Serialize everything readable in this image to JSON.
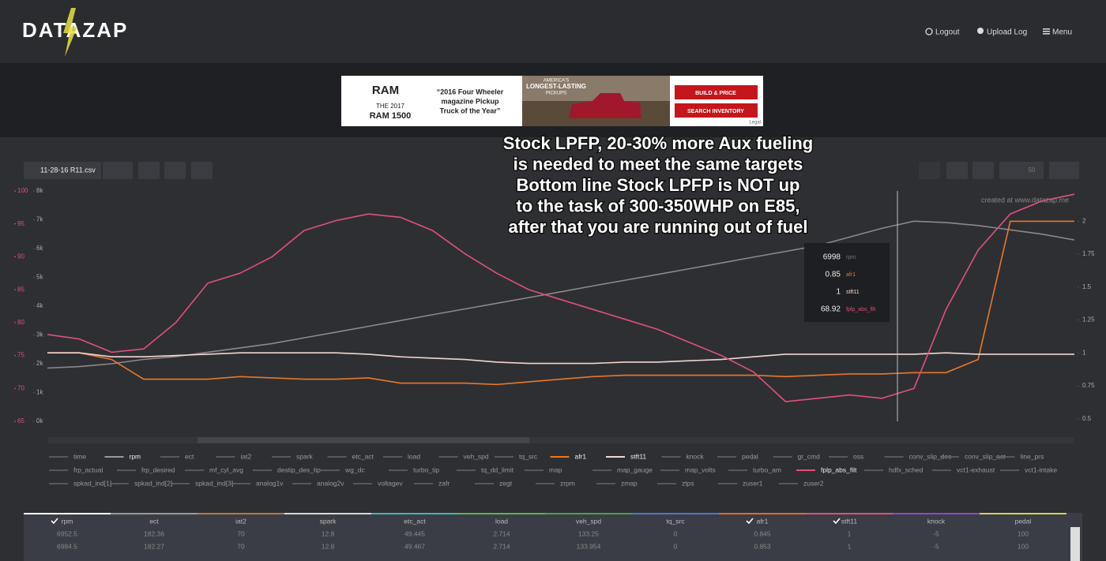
{
  "header": {
    "logo": "DATAZAP",
    "nav": [
      "Logout",
      "Upload Log",
      "Menu"
    ]
  },
  "ad": {
    "brand": "RAM",
    "model_year": "THE 2017",
    "model": "RAM 1500",
    "quote": [
      "“2016 Four Wheeler",
      "magazine Pickup",
      "Truck of the Year”"
    ],
    "tagline": [
      "AMERICA'S",
      "LONGEST-LASTING",
      "PICKUPS"
    ],
    "buttons": [
      "BUILD & PRICE",
      "SEARCH INVENTORY"
    ],
    "legal": "Legal"
  },
  "toolbar": {
    "file": "11-28-16 R11.csv",
    "speed": "50"
  },
  "annotation": [
    "Stock LPFP, 20-30% more Aux fueling",
    "is needed to meet the same targets",
    "Bottom line Stock LPFP is NOT up",
    "to the task of 300-350WHP on E85,",
    "after that you are running out of fuel"
  ],
  "chart_data": {
    "type": "line",
    "watermark": "created at www.datazap.me",
    "ylim": [
      0,
      8000
    ],
    "yticks": [
      {
        "value": 0,
        "label": "0k"
      },
      {
        "value": 1000,
        "label": "1k"
      },
      {
        "value": 2000,
        "label": "2k"
      },
      {
        "value": 3000,
        "label": "3k"
      },
      {
        "value": 4000,
        "label": "4k"
      },
      {
        "value": 5000,
        "label": "5k"
      },
      {
        "value": 6000,
        "label": "6k"
      },
      {
        "value": 7000,
        "label": "7k"
      },
      {
        "value": 8000,
        "label": "8k"
      }
    ],
    "y2lim": [
      0.48,
      2.23
    ],
    "y2ticks": [
      0.5,
      0.75,
      1,
      1.25,
      1.5,
      1.75,
      2
    ],
    "y3lim": [
      65,
      100
    ],
    "y3ticks": [
      65,
      70,
      75,
      80,
      85,
      90,
      95,
      100
    ],
    "y3color": "#e0507a",
    "grid": false,
    "series": [
      {
        "name": "rpm",
        "color": "#8a8a8a",
        "axis": "y",
        "values": [
          1850,
          1900,
          2000,
          2150,
          2250,
          2400,
          2550,
          2700,
          2900,
          3100,
          3300,
          3500,
          3700,
          3900,
          4100,
          4300,
          4500,
          4700,
          4900,
          5100,
          5300,
          5500,
          5700,
          5900,
          6100,
          6400,
          6700,
          6950,
          6900,
          6800,
          6650,
          6500,
          6300
        ]
      },
      {
        "name": "afr1",
        "color": "#e8782a",
        "axis": "y2",
        "values": [
          1.0,
          1.0,
          0.95,
          0.8,
          0.8,
          0.8,
          0.82,
          0.81,
          0.8,
          0.8,
          0.81,
          0.77,
          0.77,
          0.77,
          0.76,
          0.78,
          0.8,
          0.82,
          0.83,
          0.83,
          0.83,
          0.83,
          0.83,
          0.82,
          0.83,
          0.84,
          0.84,
          0.85,
          0.85,
          0.95,
          2.0,
          2.0,
          2.0
        ]
      },
      {
        "name": "stft11",
        "color": "#f2d6cf",
        "axis": "y2",
        "values": [
          1,
          1,
          0.97,
          0.97,
          0.98,
          0.99,
          1.0,
          1.0,
          1.0,
          1.0,
          0.99,
          0.97,
          0.96,
          0.95,
          0.93,
          0.92,
          0.92,
          0.92,
          0.93,
          0.93,
          0.94,
          0.95,
          0.97,
          0.99,
          0.99,
          0.99,
          0.99,
          0.99,
          1.0,
          0.99,
          0.99,
          0.99,
          0.99
        ]
      },
      {
        "name": "fplp_abs_filt",
        "color": "#e0507a",
        "axis": "y3",
        "values": [
          78.2,
          77.5,
          75.5,
          76,
          80,
          86,
          87.5,
          90,
          94,
          95.5,
          96.5,
          96,
          94,
          90.5,
          87.5,
          85,
          83.5,
          82,
          80.5,
          79,
          77,
          75,
          72.5,
          68,
          68.5,
          69,
          68.5,
          70,
          82,
          91,
          96.5,
          98.5,
          99.5
        ]
      }
    ],
    "tooltip": [
      {
        "value": 6998,
        "label": "rpm"
      },
      {
        "value": 0.85,
        "label": "afr1"
      },
      {
        "value": 1,
        "label": "stft11"
      },
      {
        "value": 68.92,
        "label": "fplp_abs_filt"
      }
    ],
    "legend_rows": [
      [
        "time",
        "rpm",
        "ect",
        "iat2",
        "spark",
        "etc_act",
        "load",
        "veh_spd",
        "tq_src",
        "afr1",
        "stft11",
        "knock",
        "pedal",
        "gr_cmd",
        "oss",
        "conv_slip_des",
        "conv_slip_act",
        "line_prs"
      ],
      [
        "frp_actual",
        "frp_desired",
        "mf_cyl_avg",
        "destip_des_tip",
        "wg_dc",
        "turbo_tip",
        "tq_dd_limit",
        "map",
        "map_gauge",
        "map_volts",
        "turbo_am",
        "fplp_abs_filt",
        "hdfx_sched",
        "vct1-exhaust",
        "vct1-intake"
      ],
      [
        "spkad_ind[1]",
        "spkad_ind[2]",
        "spkad_ind[3]",
        "analog1v",
        "analog2v",
        "voltagev",
        "zafr",
        "zegt",
        "zrpm",
        "zmap",
        "ztps",
        "zuser1",
        "zuser2"
      ]
    ]
  },
  "table": {
    "headers": [
      "rpm",
      "ect",
      "iat2",
      "spark",
      "etc_act",
      "load",
      "veh_spd",
      "tq_src",
      "afr1",
      "stft11",
      "knock",
      "pedal"
    ],
    "checked": [
      true,
      false,
      false,
      false,
      false,
      false,
      false,
      false,
      true,
      true,
      false,
      false
    ],
    "column_colors": [
      "#ffffff",
      "#9a9a9a",
      "#c0763a",
      "#d8d8d8",
      "#3fb7b0",
      "#59b44a",
      "#3fa84a",
      "#4a78d0",
      "#e8682a",
      "#e05080",
      "#8a4ad0",
      "#d8d050"
    ],
    "rows": [
      [
        "6952.5",
        "182.36",
        "70",
        "12.8",
        "49.445",
        "2.714",
        "133.25",
        "0",
        "0.845",
        "1",
        "-5",
        "100"
      ],
      [
        "6984.5",
        "182.27",
        "70",
        "12.8",
        "49.467",
        "2.714",
        "133.954",
        "0",
        "0.853",
        "1",
        "-5",
        "100"
      ]
    ]
  }
}
